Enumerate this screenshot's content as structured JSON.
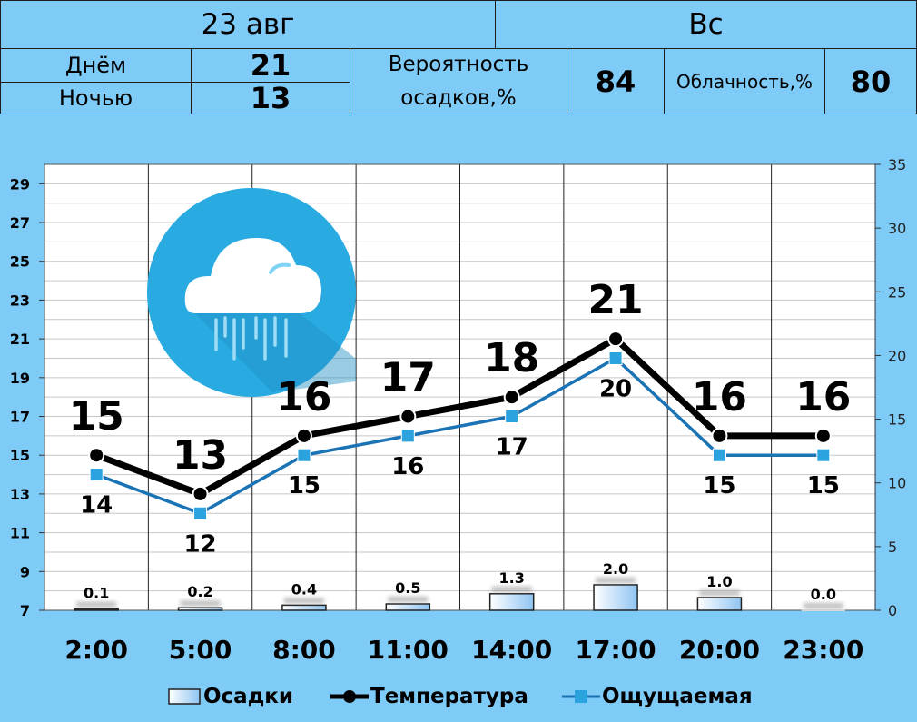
{
  "header": {
    "date": "23 авг",
    "weekday": "Вс",
    "day_label": "Днём",
    "day_temp": "21",
    "night_label": "Ночью",
    "night_temp": "13",
    "precip_prob_label_1": "Вероятность",
    "precip_prob_label_2": "осадков,%",
    "precip_prob": "84",
    "cloud_label": "Облачность,%",
    "cloud_value": "80"
  },
  "weather_icon": "cloud-rain-icon",
  "colors": {
    "background": "#7ecbf7",
    "temperature": "#000000",
    "feels_like": "#1a73b5",
    "feels_marker": "#2aa3de",
    "icon_circle": "#29abe2"
  },
  "chart_data": {
    "type": "line",
    "categories": [
      "2:00",
      "5:00",
      "8:00",
      "11:00",
      "14:00",
      "17:00",
      "20:00",
      "23:00"
    ],
    "series": [
      {
        "name": "Температура",
        "values": [
          15,
          13,
          16,
          17,
          18,
          21,
          16,
          16
        ]
      },
      {
        "name": "Ощущаемая",
        "values": [
          14,
          12,
          15,
          16,
          17,
          20,
          15,
          15
        ]
      },
      {
        "name": "Осадки",
        "values": [
          0.1,
          0.2,
          0.4,
          0.5,
          1.3,
          2.0,
          1.0,
          0.0
        ],
        "labels": [
          "0.1",
          "0.2",
          "0.4",
          "0.5",
          "1.3",
          "2.0",
          "1.0",
          "0.0"
        ]
      }
    ],
    "y_left": {
      "ylim": [
        7,
        30
      ],
      "ticks": [
        7,
        9,
        11,
        13,
        15,
        17,
        19,
        21,
        23,
        25,
        27,
        29
      ]
    },
    "y_right": {
      "ylim": [
        0,
        35
      ],
      "ticks": [
        0,
        5,
        10,
        15,
        20,
        25,
        30,
        35
      ]
    },
    "legend": [
      "Осадки",
      "Температура",
      "Ощущаемая"
    ],
    "legend_position": "bottom",
    "grid": true
  }
}
